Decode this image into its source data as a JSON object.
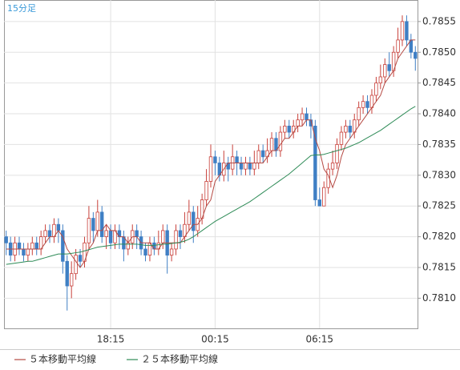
{
  "chart_data": {
    "type": "candlestick",
    "title": "15分足",
    "categories": [
      null,
      null,
      null,
      null,
      null,
      null,
      null,
      null,
      null,
      null,
      null,
      null,
      null,
      null,
      null,
      null,
      null,
      null,
      null,
      null,
      null,
      null,
      null,
      null,
      "18:15",
      null,
      null,
      null,
      null,
      null,
      null,
      null,
      null,
      null,
      null,
      null,
      null,
      null,
      null,
      null,
      null,
      null,
      null,
      null,
      null,
      null,
      null,
      null,
      "00:15",
      null,
      null,
      null,
      null,
      null,
      null,
      null,
      null,
      null,
      null,
      null,
      null,
      null,
      null,
      null,
      null,
      null,
      null,
      null,
      null,
      null,
      null,
      null,
      "06:15",
      null,
      null,
      null,
      null,
      null,
      null,
      null,
      null,
      null,
      null,
      null,
      null,
      null,
      null,
      null,
      null,
      null,
      null,
      null,
      null,
      null,
      null
    ],
    "open": [
      0.782,
      0.7819,
      0.7817,
      0.7819,
      0.7818,
      0.7817,
      0.7818,
      0.7819,
      0.7818,
      0.782,
      0.7821,
      0.782,
      0.7822,
      0.7821,
      0.7816,
      0.7812,
      0.7814,
      0.7817,
      0.7816,
      0.7819,
      0.7823,
      0.7821,
      0.7824,
      0.782,
      0.7821,
      0.7819,
      0.7821,
      0.782,
      0.7818,
      0.7819,
      0.7821,
      0.782,
      0.7818,
      0.7817,
      0.7819,
      0.7818,
      0.7819,
      0.7821,
      0.7817,
      0.7818,
      0.7821,
      0.782,
      0.7822,
      0.7824,
      0.7821,
      0.7823,
      0.7826,
      0.7829,
      0.7833,
      0.7832,
      0.783,
      0.7832,
      0.7831,
      0.7833,
      0.7832,
      0.7831,
      0.7832,
      0.7831,
      0.7832,
      0.7834,
      0.7833,
      0.7834,
      0.7836,
      0.7834,
      0.7837,
      0.7838,
      0.7837,
      0.7838,
      0.7839,
      0.784,
      0.7839,
      0.7838,
      0.7826,
      0.7825,
      0.7828,
      0.7831,
      0.7832,
      0.7835,
      0.7837,
      0.7838,
      0.7837,
      0.7839,
      0.7841,
      0.7842,
      0.7841,
      0.7843,
      0.7845,
      0.7846,
      0.7848,
      0.7847,
      0.785,
      0.7852,
      0.7855,
      0.7852,
      0.785
    ],
    "high": [
      0.7821,
      0.782,
      0.782,
      0.782,
      0.7819,
      0.7819,
      0.782,
      0.782,
      0.7821,
      0.7822,
      0.7822,
      0.7823,
      0.7823,
      0.7822,
      0.7817,
      0.7816,
      0.7818,
      0.7818,
      0.782,
      0.7825,
      0.7824,
      0.7826,
      0.7825,
      0.7822,
      0.7822,
      0.7822,
      0.7822,
      0.7821,
      0.782,
      0.7822,
      0.7822,
      0.7821,
      0.7819,
      0.782,
      0.782,
      0.7821,
      0.7822,
      0.7822,
      0.7819,
      0.7822,
      0.7822,
      0.7824,
      0.7826,
      0.7825,
      0.7825,
      0.7827,
      0.7831,
      0.7835,
      0.7834,
      0.7833,
      0.7834,
      0.7833,
      0.7835,
      0.7834,
      0.7833,
      0.7833,
      0.7833,
      0.7834,
      0.7835,
      0.7835,
      0.7836,
      0.7837,
      0.7837,
      0.7838,
      0.7839,
      0.7839,
      0.7839,
      0.784,
      0.7841,
      0.7841,
      0.784,
      0.7839,
      0.7828,
      0.7829,
      0.7832,
      0.7834,
      0.7836,
      0.7838,
      0.7839,
      0.7839,
      0.784,
      0.7842,
      0.7843,
      0.7843,
      0.7844,
      0.7846,
      0.7848,
      0.7849,
      0.785,
      0.7851,
      0.7854,
      0.7856,
      0.7856,
      0.7853,
      0.7851
    ],
    "low": [
      0.7817,
      0.7816,
      0.7816,
      0.7817,
      0.7816,
      0.7816,
      0.7817,
      0.7817,
      0.7817,
      0.7819,
      0.7819,
      0.7819,
      0.7819,
      0.7814,
      0.7808,
      0.781,
      0.7813,
      0.7815,
      0.7815,
      0.7818,
      0.7819,
      0.782,
      0.7819,
      0.7818,
      0.7818,
      0.7818,
      0.7818,
      0.7816,
      0.7817,
      0.7818,
      0.7818,
      0.7817,
      0.7816,
      0.7816,
      0.7817,
      0.7817,
      0.7818,
      0.7814,
      0.7816,
      0.7817,
      0.7818,
      0.7819,
      0.7821,
      0.7819,
      0.782,
      0.7822,
      0.7825,
      0.7828,
      0.783,
      0.7829,
      0.7829,
      0.7829,
      0.783,
      0.783,
      0.783,
      0.783,
      0.783,
      0.783,
      0.7831,
      0.7832,
      0.7832,
      0.7833,
      0.7833,
      0.7833,
      0.7836,
      0.7836,
      0.7836,
      0.7837,
      0.7838,
      0.7838,
      0.7836,
      0.7825,
      0.7825,
      0.7825,
      0.7827,
      0.783,
      0.7831,
      0.7834,
      0.7836,
      0.7836,
      0.7836,
      0.7838,
      0.784,
      0.784,
      0.784,
      0.7842,
      0.7844,
      0.7845,
      0.7846,
      0.7846,
      0.7849,
      0.7851,
      0.7851,
      0.7849,
      0.7847
    ],
    "close": [
      0.7819,
      0.7817,
      0.7819,
      0.7818,
      0.7817,
      0.7818,
      0.7819,
      0.7818,
      0.782,
      0.7821,
      0.782,
      0.7822,
      0.7821,
      0.7816,
      0.7812,
      0.7814,
      0.7817,
      0.7816,
      0.7819,
      0.7823,
      0.7821,
      0.7824,
      0.782,
      0.7821,
      0.7819,
      0.7821,
      0.782,
      0.7818,
      0.7819,
      0.7821,
      0.782,
      0.7818,
      0.7817,
      0.7819,
      0.7818,
      0.7819,
      0.7821,
      0.7817,
      0.7818,
      0.7821,
      0.782,
      0.7822,
      0.7824,
      0.7821,
      0.7823,
      0.7826,
      0.7829,
      0.7833,
      0.7832,
      0.783,
      0.7832,
      0.7831,
      0.7833,
      0.7832,
      0.7831,
      0.7832,
      0.7831,
      0.7832,
      0.7834,
      0.7833,
      0.7834,
      0.7836,
      0.7834,
      0.7837,
      0.7838,
      0.7837,
      0.7838,
      0.7839,
      0.784,
      0.7839,
      0.7838,
      0.7826,
      0.7825,
      0.7828,
      0.7831,
      0.7832,
      0.7835,
      0.7837,
      0.7838,
      0.7837,
      0.7839,
      0.7841,
      0.7842,
      0.7841,
      0.7843,
      0.7845,
      0.7846,
      0.7848,
      0.7847,
      0.785,
      0.7852,
      0.7855,
      0.7852,
      0.785,
      0.7849
    ],
    "up_color": "#c8403a",
    "down_color": "#3f7fc4",
    "series": [
      {
        "name": "５本移動平均線",
        "color": "#b54a44",
        "values": [
          0.7818,
          0.7818,
          0.7818,
          0.7818,
          0.7818,
          0.7818,
          0.7818,
          0.7818,
          0.7818,
          0.7819,
          0.782,
          0.782,
          0.7821,
          0.782,
          0.7818,
          0.7817,
          0.7816,
          0.7815,
          0.7816,
          0.7818,
          0.7819,
          0.7821,
          0.7821,
          0.7822,
          0.7821,
          0.7821,
          0.782,
          0.782,
          0.7819,
          0.782,
          0.782,
          0.7819,
          0.7819,
          0.7819,
          0.7818,
          0.7818,
          0.7819,
          0.7819,
          0.7819,
          0.7819,
          0.7819,
          0.782,
          0.7821,
          0.7822,
          0.7822,
          0.7823,
          0.7825,
          0.7826,
          0.7829,
          0.783,
          0.7831,
          0.7832,
          0.7832,
          0.7832,
          0.7832,
          0.7832,
          0.7832,
          0.7832,
          0.7832,
          0.7832,
          0.7833,
          0.7834,
          0.7834,
          0.7835,
          0.7836,
          0.7836,
          0.7837,
          0.7838,
          0.7838,
          0.7839,
          0.7839,
          0.7836,
          0.7834,
          0.7831,
          0.783,
          0.7828,
          0.783,
          0.7833,
          0.7835,
          0.7836,
          0.7837,
          0.7838,
          0.7839,
          0.784,
          0.7841,
          0.7842,
          0.7843,
          0.7845,
          0.7846,
          0.7847,
          0.7849,
          0.785,
          0.7851,
          0.7852,
          0.7852
        ]
      },
      {
        "name": "２５本移動平均線",
        "color": "#2e8b57",
        "values": [
          0.78155,
          0.78156,
          0.78157,
          0.78158,
          0.78159,
          0.7816,
          0.7816,
          0.78162,
          0.78164,
          0.78166,
          0.78168,
          0.7817,
          0.78172,
          0.78172,
          0.78172,
          0.78173,
          0.78174,
          0.78175,
          0.78177,
          0.78179,
          0.78181,
          0.78183,
          0.78184,
          0.78185,
          0.78186,
          0.78187,
          0.78188,
          0.78188,
          0.78188,
          0.78188,
          0.78188,
          0.78187,
          0.78186,
          0.78186,
          0.78186,
          0.78187,
          0.78188,
          0.78188,
          0.78189,
          0.7819,
          0.78191,
          0.78193,
          0.78196,
          0.782,
          0.78205,
          0.7821,
          0.78215,
          0.7822,
          0.78225,
          0.78229,
          0.78233,
          0.78237,
          0.78241,
          0.78245,
          0.78249,
          0.78253,
          0.78257,
          0.78262,
          0.78267,
          0.78272,
          0.78277,
          0.78282,
          0.78287,
          0.78292,
          0.78297,
          0.78302,
          0.78308,
          0.78314,
          0.7832,
          0.78326,
          0.78332,
          0.78333,
          0.78333,
          0.78334,
          0.78336,
          0.78338,
          0.7834,
          0.78342,
          0.78344,
          0.78347,
          0.7835,
          0.78353,
          0.78357,
          0.78361,
          0.78365,
          0.78369,
          0.78373,
          0.78378,
          0.78383,
          0.78388,
          0.78393,
          0.78398,
          0.78403,
          0.78408,
          0.78412
        ]
      }
    ],
    "ylim": [
      0.78051,
      0.78585
    ],
    "yticks": [
      {
        "value": 0.781,
        "label": "0.7810"
      },
      0.7815,
      {
        "value": 0.782,
        "label": "0.7820"
      },
      0.7825,
      {
        "value": 0.783,
        "label": "0.7830"
      },
      0.7835,
      {
        "value": 0.784,
        "label": "0.7840"
      },
      0.7845,
      {
        "value": 0.785,
        "label": "0.7850"
      },
      0.7855
    ],
    "grid": true
  }
}
